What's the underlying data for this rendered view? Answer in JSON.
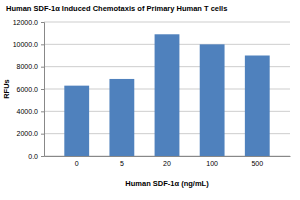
{
  "chart_data": {
    "type": "bar",
    "title": "Human SDF-1α Induced Chemotaxis of Primary Human T cells",
    "x_label": "Human SDF-1α (ng/mL)",
    "y_label": "RFUs",
    "categories": [
      "0",
      "5",
      "20",
      "100",
      "500"
    ],
    "values": [
      6300,
      6900,
      10900,
      10000,
      9000
    ],
    "color": "#4f81bd",
    "ylim": [
      0,
      12000
    ],
    "yticks": [
      {
        "value": 0,
        "label": "0.0"
      },
      {
        "value": 2000,
        "label": "2000.0"
      },
      {
        "value": 4000,
        "label": "4000.0"
      },
      {
        "value": 6000,
        "label": "6000.0"
      },
      {
        "value": 8000,
        "label": "8000.0"
      },
      {
        "value": 10000,
        "label": "10000.0"
      },
      {
        "value": 12000,
        "label": "12000.0"
      }
    ],
    "grid": true
  }
}
